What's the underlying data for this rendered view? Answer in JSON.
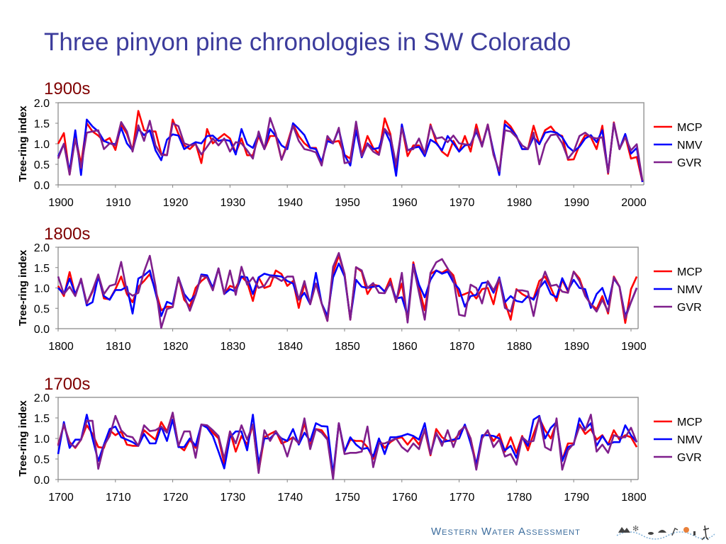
{
  "title": "Three pinyon pine chronologies in SW Colorado",
  "footer": {
    "logo_text": "Western Water Assessment"
  },
  "colors": {
    "MCP": "#ff0000",
    "NMV": "#0000ff",
    "GVR": "#7f1f8c",
    "title": "#3c3c9c",
    "section": "#7f0000"
  },
  "chart_data": [
    {
      "type": "line",
      "section_label": "1900s",
      "ylabel": "Tree-ring index",
      "ylim": [
        0,
        2
      ],
      "yticks": [
        "0.0",
        "0.5",
        "1.0",
        "1.5",
        "2.0"
      ],
      "xlim": [
        1900,
        2002
      ],
      "xticks": [
        "1900",
        "1910",
        "1920",
        "1930",
        "1940",
        "1950",
        "1960",
        "1970",
        "1980",
        "1990",
        "2000"
      ],
      "first_year": 1900,
      "legend": "right",
      "grid": false,
      "series": [
        {
          "name": "MCP",
          "values": [
            1.0,
            1.26,
            0.25,
            1.2,
            0.5,
            1.5,
            1.3,
            1.2,
            1.06,
            1.14,
            0.85,
            1.47,
            1.24,
            0.84,
            1.8,
            1.33,
            1.3,
            1.3,
            0.76,
            0.72,
            1.59,
            1.24,
            0.96,
            0.87,
            1.01,
            0.53,
            1.36,
            1.01,
            1.13,
            1.24,
            1.13,
            0.78,
            1.13,
            0.72,
            0.72,
            1.19,
            0.87,
            1.19,
            1.19,
            0.61,
            1.01,
            1.47,
            1.19,
            1.01,
            0.9,
            0.9,
            0.53,
            1.13,
            1.04,
            1.07,
            0.73,
            0.64,
            1.5,
            0.73,
            1.19,
            0.9,
            0.76,
            1.62,
            1.24,
            0.33,
            1.42,
            0.7,
            0.96,
            0.96,
            0.73,
            1.47,
            1.04,
            0.81,
            0.7,
            1.07,
            0.81,
            1.19,
            0.81,
            1.47,
            0.96,
            1.47,
            0.79,
            0.27,
            1.56,
            1.42,
            1.19,
            0.87,
            0.87,
            1.44,
            0.99,
            1.33,
            1.42,
            1.24,
            1.19,
            0.61,
            0.62,
            0.96,
            1.21,
            1.16,
            0.87,
            1.44,
            0.27,
            1.52,
            0.87,
            1.19,
            0.64,
            0.68,
            0.07
          ]
        },
        {
          "name": "NMV",
          "values": [
            0.69,
            1.0,
            0.33,
            1.33,
            0.24,
            1.59,
            1.42,
            1.3,
            1.07,
            1.01,
            0.99,
            1.39,
            1.01,
            0.84,
            1.36,
            1.21,
            1.33,
            0.84,
            0.6,
            1.1,
            1.23,
            1.2,
            0.87,
            0.96,
            1.04,
            1.01,
            1.19,
            1.2,
            1.07,
            1.1,
            1.07,
            0.74,
            1.36,
            0.99,
            0.9,
            1.24,
            0.87,
            1.36,
            1.19,
            0.96,
            0.87,
            1.5,
            1.36,
            1.21,
            0.9,
            0.87,
            0.56,
            1.07,
            1.01,
            1.36,
            0.73,
            0.47,
            1.33,
            0.67,
            1.01,
            0.87,
            0.9,
            1.33,
            1.04,
            0.22,
            1.47,
            0.84,
            0.9,
            0.93,
            0.7,
            1.1,
            1.01,
            0.84,
            1.19,
            1.01,
            0.81,
            0.96,
            0.99,
            1.3,
            0.96,
            1.44,
            0.81,
            0.24,
            1.47,
            1.36,
            1.19,
            0.87,
            0.87,
            1.16,
            0.99,
            1.27,
            1.3,
            1.27,
            1.16,
            0.93,
            0.81,
            0.93,
            1.13,
            1.21,
            1.04,
            1.33,
            0.3,
            1.5,
            0.87,
            1.24,
            0.76,
            0.9,
            0.07
          ]
        },
        {
          "name": "GVR",
          "values": [
            0.64,
            1.0,
            0.25,
            1.13,
            0.41,
            1.27,
            1.3,
            1.33,
            0.87,
            1.01,
            0.96,
            1.53,
            1.3,
            0.81,
            1.45,
            1.07,
            1.56,
            0.96,
            0.73,
            0.72,
            1.5,
            1.43,
            1.01,
            0.96,
            0.99,
            0.74,
            0.93,
            1.13,
            0.96,
            1.13,
            0.81,
            1.04,
            1.01,
            0.84,
            0.64,
            1.3,
            0.87,
            1.63,
            1.24,
            0.61,
            0.96,
            1.44,
            1.07,
            0.87,
            0.84,
            0.79,
            0.47,
            1.19,
            1.01,
            1.39,
            0.53,
            0.56,
            1.54,
            0.7,
            0.99,
            0.81,
            0.73,
            1.36,
            1.19,
            0.5,
            1.39,
            0.84,
            0.87,
            1.13,
            0.76,
            1.44,
            1.13,
            1.16,
            1.04,
            1.2,
            1.01,
            0.99,
            0.96,
            1.36,
            0.93,
            1.47,
            0.73,
            0.33,
            1.33,
            1.3,
            1.16,
            0.96,
            0.87,
            1.27,
            0.5,
            0.99,
            1.21,
            1.23,
            1.01,
            0.64,
            0.81,
            1.19,
            1.27,
            1.16,
            1.13,
            1.16,
            0.3,
            1.5,
            0.87,
            1.16,
            0.84,
            0.99,
            0.1
          ]
        }
      ]
    },
    {
      "type": "line",
      "section_label": "1800s",
      "ylabel": "Tree-ring index",
      "ylim": [
        0,
        2
      ],
      "yticks": [
        "0.0",
        "0.5",
        "1.0",
        "1.5",
        "2.0"
      ],
      "xlim": [
        1800,
        1901
      ],
      "xticks": [
        "1800",
        "1810",
        "1820",
        "1830",
        "1840",
        "1850",
        "1860",
        "1870",
        "1880",
        "1890",
        "1900"
      ],
      "first_year": 1800,
      "legend": "right",
      "grid": false,
      "series": [
        {
          "name": "MCP",
          "values": [
            1.05,
            0.8,
            1.39,
            0.83,
            1.2,
            0.62,
            0.91,
            1.31,
            0.74,
            0.72,
            0.97,
            1.28,
            0.85,
            0.65,
            1.03,
            1.17,
            1.34,
            0.94,
            0.45,
            0.54,
            0.53,
            1.26,
            0.71,
            0.54,
            1.0,
            1.17,
            1.28,
            1.0,
            1.48,
            0.85,
            1.05,
            1.0,
            1.28,
            1.14,
            0.68,
            1.26,
            1.0,
            1.05,
            1.43,
            1.34,
            1.05,
            1.17,
            0.51,
            1.11,
            0.6,
            1.11,
            0.62,
            0.19,
            1.37,
            1.8,
            1.34,
            0.22,
            1.51,
            1.4,
            0.85,
            1.08,
            1.05,
            0.91,
            1.23,
            0.68,
            1.11,
            0.19,
            1.63,
            1.0,
            0.45,
            1.34,
            1.43,
            1.37,
            1.46,
            1.31,
            0.8,
            0.85,
            0.91,
            0.74,
            0.97,
            1.0,
            0.6,
            1.23,
            0.65,
            0.22,
            0.97,
            0.85,
            0.77,
            0.74,
            1.17,
            1.28,
            1.0,
            0.68,
            1.2,
            0.91,
            1.4,
            1.23,
            0.83,
            0.6,
            0.48,
            0.8,
            0.37,
            1.28,
            1.03,
            0.14,
            0.97,
            1.28
          ]
        },
        {
          "name": "NMV",
          "values": [
            1.0,
            0.85,
            1.23,
            0.85,
            1.2,
            0.57,
            0.65,
            1.28,
            0.8,
            0.71,
            0.95,
            0.95,
            1.03,
            0.37,
            1.23,
            1.31,
            1.43,
            0.88,
            0.31,
            0.66,
            0.6,
            1.26,
            0.85,
            0.68,
            0.83,
            1.33,
            1.31,
            1.0,
            1.48,
            0.85,
            0.97,
            0.91,
            1.28,
            1.26,
            0.85,
            1.26,
            1.35,
            1.31,
            1.3,
            1.28,
            1.17,
            1.11,
            0.71,
            0.88,
            0.6,
            1.37,
            0.62,
            0.31,
            1.26,
            1.6,
            1.28,
            0.25,
            1.2,
            1.03,
            1.0,
            1.03,
            1.05,
            0.91,
            1.11,
            0.74,
            0.77,
            0.31,
            1.57,
            1.08,
            0.77,
            1.2,
            1.43,
            1.35,
            1.4,
            1.14,
            0.97,
            0.54,
            0.8,
            0.83,
            1.12,
            1.14,
            0.88,
            1.26,
            0.65,
            0.8,
            0.68,
            0.65,
            0.8,
            0.71,
            1.0,
            1.17,
            0.85,
            0.77,
            1.24,
            0.94,
            1.2,
            1.0,
            0.97,
            0.51,
            0.85,
            1.0,
            0.6,
            1.23,
            1.03,
            0.31,
            0.65,
            1.0
          ]
        },
        {
          "name": "GVR",
          "values": [
            1.28,
            0.85,
            1.03,
            0.8,
            1.23,
            0.62,
            0.94,
            1.33,
            0.85,
            1.05,
            1.09,
            1.64,
            0.91,
            0.81,
            0.88,
            1.4,
            1.79,
            1.05,
            0.02,
            0.48,
            0.53,
            1.26,
            0.8,
            0.44,
            0.83,
            1.3,
            1.26,
            0.94,
            1.48,
            0.85,
            1.43,
            0.83,
            1.52,
            1.08,
            1.26,
            1.0,
            1.05,
            1.28,
            1.26,
            1.17,
            1.28,
            1.28,
            0.71,
            1.17,
            0.6,
            1.11,
            0.62,
            0.19,
            1.52,
            1.86,
            1.34,
            0.22,
            1.51,
            1.43,
            1.0,
            1.12,
            0.88,
            0.87,
            1.14,
            0.65,
            1.37,
            0.15,
            1.54,
            0.88,
            0.22,
            1.37,
            1.63,
            1.71,
            1.48,
            1.23,
            0.34,
            0.31,
            1.08,
            1.0,
            0.62,
            1.17,
            0.94,
            1.23,
            0.51,
            0.42,
            0.94,
            0.94,
            0.91,
            0.31,
            1.0,
            1.4,
            1.05,
            1.08,
            0.91,
            0.88,
            1.4,
            1.17,
            0.8,
            0.6,
            0.42,
            0.71,
            0.42,
            1.26,
            1.03,
            0.25,
            0.65,
            1.0
          ]
        }
      ]
    },
    {
      "type": "line",
      "section_label": "1700s",
      "ylabel": "Tree-ring index",
      "ylim": [
        0,
        2
      ],
      "yticks": [
        "0.0",
        "0.5",
        "1.0",
        "1.5",
        "2.0"
      ],
      "xlim": [
        1700,
        1801
      ],
      "xticks": [
        "1700",
        "1710",
        "1720",
        "1730",
        "1740",
        "1750",
        "1760",
        "1770",
        "1780",
        "1790",
        "1800"
      ],
      "first_year": 1700,
      "legend": "right",
      "grid": false,
      "series": [
        {
          "name": "MCP",
          "values": [
            0.85,
            1.32,
            0.91,
            0.77,
            0.97,
            1.32,
            1.11,
            0.79,
            0.77,
            1.2,
            1.08,
            1.17,
            0.85,
            0.82,
            0.82,
            1.2,
            1.08,
            0.97,
            1.4,
            1.17,
            1.61,
            0.82,
            0.71,
            0.97,
            0.77,
            1.34,
            1.29,
            1.14,
            1.0,
            0.39,
            1.17,
            0.68,
            1.06,
            0.85,
            1.34,
            0.19,
            1.03,
            1.11,
            1.18,
            0.88,
            0.94,
            1.03,
            0.88,
            1.37,
            0.82,
            1.23,
            1.2,
            1.0,
            0.07,
            1.37,
            0.68,
            0.97,
            0.94,
            0.94,
            0.79,
            0.5,
            0.97,
            0.77,
            0.91,
            1.0,
            1.03,
            0.85,
            1.03,
            0.85,
            1.2,
            0.59,
            1.23,
            1.03,
            0.94,
            0.94,
            1.11,
            1.32,
            1.0,
            0.36,
            1.03,
            1.17,
            0.94,
            1.11,
            0.68,
            1.03,
            0.65,
            1.06,
            0.71,
            1.11,
            1.49,
            1.2,
            1.0,
            1.4,
            0.48,
            0.88,
            0.88,
            1.34,
            1.11,
            1.23,
            0.97,
            1.08,
            0.85,
            1.2,
            0.97,
            1.08,
            1.03,
            0.79
          ]
        },
        {
          "name": "NMV",
          "values": [
            0.62,
            1.4,
            0.77,
            0.97,
            0.97,
            1.58,
            1.0,
            0.45,
            0.85,
            1.23,
            1.29,
            1.03,
            0.97,
            0.91,
            0.82,
            1.11,
            0.88,
            0.88,
            1.29,
            0.94,
            1.46,
            0.79,
            0.79,
            1.0,
            0.82,
            1.34,
            1.26,
            1.06,
            0.68,
            0.27,
            1.03,
            1.17,
            1.17,
            0.71,
            1.58,
            0.39,
            1.0,
            1.0,
            1.14,
            1.0,
            0.94,
            1.23,
            0.85,
            1.14,
            0.94,
            1.37,
            1.3,
            1.29,
            0.13,
            1.37,
            0.68,
            1.03,
            0.85,
            0.74,
            0.77,
            0.56,
            1.0,
            0.62,
            1.03,
            1.03,
            1.06,
            1.11,
            1.06,
            0.97,
            1.37,
            0.62,
            1.11,
            0.91,
            0.94,
            0.97,
            1.0,
            1.34,
            0.88,
            0.36,
            1.08,
            1.08,
            1.06,
            1.0,
            0.71,
            0.82,
            0.53,
            1.03,
            0.82,
            1.46,
            1.55,
            1.0,
            1.26,
            1.4,
            0.45,
            0.79,
            0.85,
            1.49,
            1.23,
            1.37,
            0.82,
            1.06,
            0.85,
            0.91,
            0.91,
            1.32,
            1.08,
            0.91
          ]
        },
        {
          "name": "GVR",
          "values": [
            0.82,
            1.35,
            0.88,
            0.79,
            0.97,
            1.43,
            1.43,
            0.26,
            0.82,
            1.06,
            1.55,
            1.2,
            1.06,
            1.03,
            0.82,
            1.32,
            1.18,
            1.2,
            1.29,
            1.14,
            1.63,
            0.82,
            1.17,
            1.17,
            0.53,
            1.34,
            1.32,
            1.2,
            1.06,
            0.5,
            1.17,
            0.88,
            1.32,
            0.97,
            1.34,
            0.16,
            1.2,
            0.94,
            1.18,
            0.97,
            0.56,
            1.03,
            0.88,
            1.49,
            0.74,
            1.23,
            1.14,
            0.97,
            0.01,
            1.37,
            0.62,
            0.65,
            0.65,
            0.68,
            1.29,
            0.3,
            0.88,
            0.88,
            0.94,
            1.0,
            0.79,
            0.68,
            0.88,
            0.74,
            1.23,
            0.62,
            1.14,
            0.82,
            1.2,
            0.79,
            1.17,
            1.29,
            1.0,
            0.24,
            1.0,
            1.2,
            0.79,
            0.97,
            0.56,
            0.62,
            0.36,
            1.03,
            0.91,
            0.94,
            1.52,
            0.79,
            0.71,
            1.49,
            0.24,
            0.71,
            0.88,
            1.29,
            1.2,
            1.58,
            0.68,
            0.85,
            0.65,
            1.08,
            1.03,
            1.03,
            1.26,
            0.91
          ]
        }
      ]
    }
  ]
}
